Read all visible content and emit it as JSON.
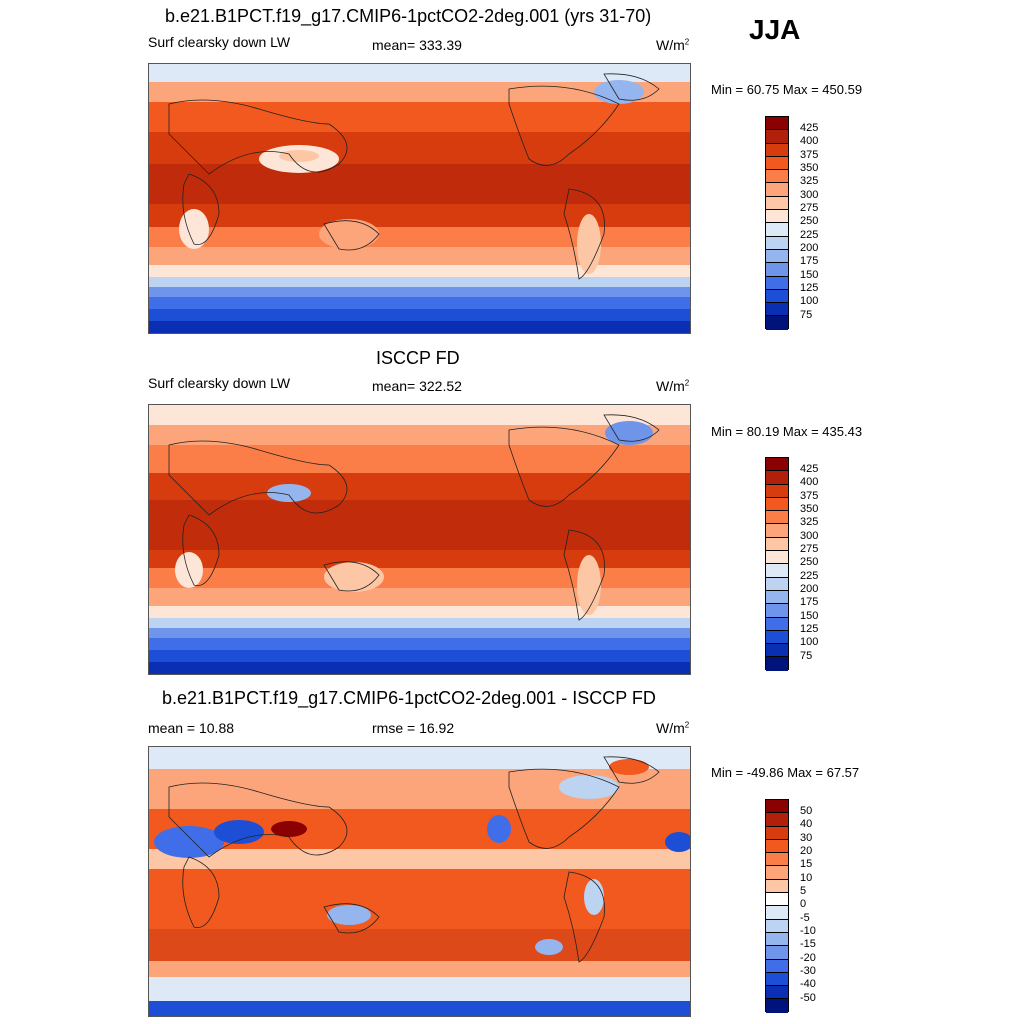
{
  "season": "JJA",
  "units": "W/m",
  "units_sup": "2",
  "panels": [
    {
      "title": "b.e21.B1PCT.f19_g17.CMIP6-1pctCO2-2deg.001 (yrs 31-70)",
      "left_label": "Surf clearsky down LW",
      "center_label": "mean= 333.39",
      "minmax": "Min =  60.75 Max = 450.59",
      "colorbar_ticks": [
        "425",
        "400",
        "375",
        "350",
        "325",
        "300",
        "275",
        "250",
        "225",
        "200",
        "175",
        "150",
        "125",
        "100",
        "75"
      ]
    },
    {
      "title": "ISCCP FD",
      "left_label": "Surf clearsky down LW",
      "center_label": "mean= 322.52",
      "minmax": "Min =  80.19 Max = 435.43",
      "colorbar_ticks": [
        "425",
        "400",
        "375",
        "350",
        "325",
        "300",
        "275",
        "250",
        "225",
        "200",
        "175",
        "150",
        "125",
        "100",
        "75"
      ]
    },
    {
      "title": "b.e21.B1PCT.f19_g17.CMIP6-1pctCO2-2deg.001 - ISCCP FD",
      "left_label": "mean =  10.88",
      "center_label": "rmse =  16.92",
      "minmax": "Min = -49.86 Max =  67.57",
      "colorbar_ticks": [
        "50",
        "40",
        "30",
        "20",
        "15",
        "10",
        "5",
        "0",
        "-5",
        "-10",
        "-15",
        "-20",
        "-30",
        "-40",
        "-50"
      ]
    }
  ],
  "colors": {
    "abs_scale": [
      "#8b0000",
      "#b0200a",
      "#d63c0e",
      "#f2591e",
      "#fb7e48",
      "#fca47a",
      "#fdc6a4",
      "#fde6d8",
      "#dde9f7",
      "#bcd3f2",
      "#94b5ee",
      "#6e95ea",
      "#3f6ee8",
      "#1c4fd6",
      "#0b2fb3",
      "#00137a"
    ],
    "diff_scale": [
      "#8b0000",
      "#b0200a",
      "#d63c0e",
      "#f2591e",
      "#fb7e48",
      "#fca47a",
      "#fdc6a4",
      "#ffffff",
      "#dde9f7",
      "#bcd3f2",
      "#94b5ee",
      "#6e95ea",
      "#3f6ee8",
      "#1c4fd6",
      "#0b2fb3",
      "#00137a"
    ]
  }
}
